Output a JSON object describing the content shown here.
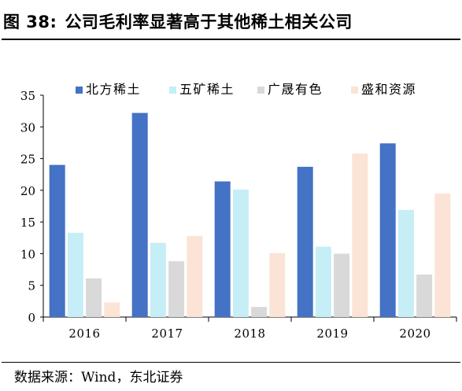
{
  "figure": {
    "label": "图 38:",
    "title": "公司毛利率显著高于其他稀土相关公司"
  },
  "source": "数据来源：Wind，东北证券",
  "chart_data": {
    "type": "bar",
    "categories": [
      "2016",
      "2017",
      "2018",
      "2019",
      "2020"
    ],
    "series": [
      {
        "name": "北方稀土",
        "color": "#4472C4",
        "values": [
          24.0,
          32.2,
          21.4,
          23.7,
          27.4
        ]
      },
      {
        "name": "五矿稀土",
        "color": "#C5EEF7",
        "values": [
          13.3,
          11.7,
          20.1,
          11.1,
          16.9
        ]
      },
      {
        "name": "广晟有色",
        "color": "#D9D9D9",
        "values": [
          6.1,
          8.8,
          1.6,
          10.0,
          6.7
        ]
      },
      {
        "name": "盛和资源",
        "color": "#FBE4D5",
        "values": [
          2.3,
          12.8,
          10.1,
          25.8,
          19.5
        ]
      }
    ],
    "yticks": [
      0,
      5,
      10,
      15,
      20,
      25,
      30,
      35
    ],
    "ylim": [
      0,
      35
    ],
    "grid": false,
    "legend": "top"
  }
}
